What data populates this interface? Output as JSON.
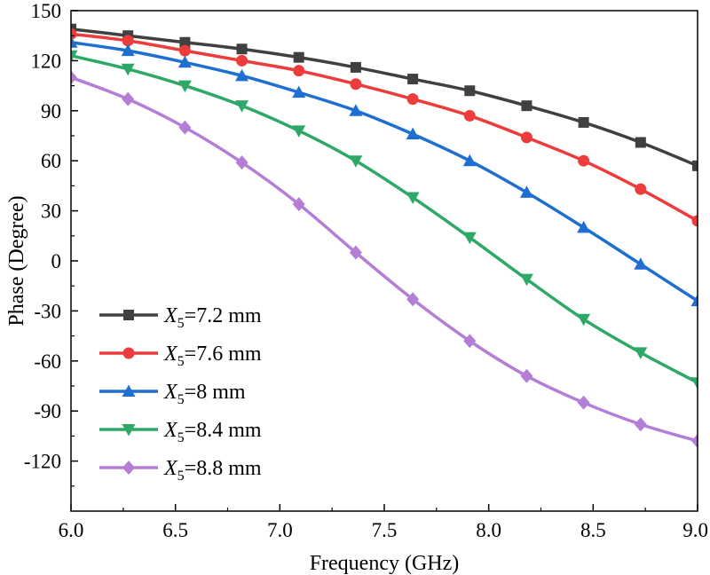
{
  "chart_data": {
    "type": "line",
    "xlabel": "Frequency (GHz)",
    "ylabel": "Phase (Degree)",
    "xlim": [
      6.0,
      9.0
    ],
    "ylim": [
      -150,
      150
    ],
    "xticks": [
      6.0,
      6.5,
      7.0,
      7.5,
      8.0,
      8.5,
      9.0
    ],
    "xtick_labels": [
      "6.0",
      "6.5",
      "7.0",
      "7.5",
      "8.0",
      "8.5",
      "9.0"
    ],
    "yticks": [
      -120,
      -90,
      -60,
      -30,
      0,
      30,
      60,
      90,
      120,
      150
    ],
    "ytick_labels": [
      "-120",
      "-90",
      "-60",
      "-30",
      "0",
      "30",
      "60",
      "90",
      "120",
      "150"
    ],
    "legend_location": "bottom-left",
    "x": [
      6.0,
      6.2727,
      6.5455,
      6.8182,
      7.0909,
      7.3636,
      7.6364,
      7.9091,
      8.1818,
      8.4545,
      8.7273,
      9.0
    ],
    "series": [
      {
        "name_prefix": "X",
        "name_sub": "5",
        "name_suffix": "=7.2 mm",
        "color": "#404040",
        "marker": "square",
        "values": [
          139,
          135,
          131,
          127,
          122,
          116,
          109,
          102,
          93,
          83,
          71,
          57
        ]
      },
      {
        "name_prefix": "X",
        "name_sub": "5",
        "name_suffix": "=7.6 mm",
        "color": "#ec3c3c",
        "marker": "circle",
        "values": [
          136,
          132,
          126,
          120,
          114,
          106,
          97,
          87,
          74,
          60,
          43,
          24
        ]
      },
      {
        "name_prefix": "X",
        "name_sub": "5",
        "name_suffix": "=8 mm",
        "color": "#1f6fd1",
        "marker": "triangle-up",
        "values": [
          131,
          126,
          119,
          111,
          101,
          90,
          76,
          60,
          41,
          20,
          -2,
          -24
        ]
      },
      {
        "name_prefix": "X",
        "name_sub": "5",
        "name_suffix": "=8.4 mm",
        "color": "#2ea866",
        "marker": "triangle-down",
        "values": [
          123,
          115,
          105,
          93,
          78,
          60,
          38,
          14,
          -11,
          -35,
          -55,
          -73
        ]
      },
      {
        "name_prefix": "X",
        "name_sub": "5",
        "name_suffix": "=8.8 mm",
        "color": "#b57ed6",
        "marker": "diamond",
        "values": [
          110,
          97,
          80,
          59,
          34,
          5,
          -23,
          -48,
          -69,
          -85,
          -98,
          -108
        ]
      }
    ]
  }
}
